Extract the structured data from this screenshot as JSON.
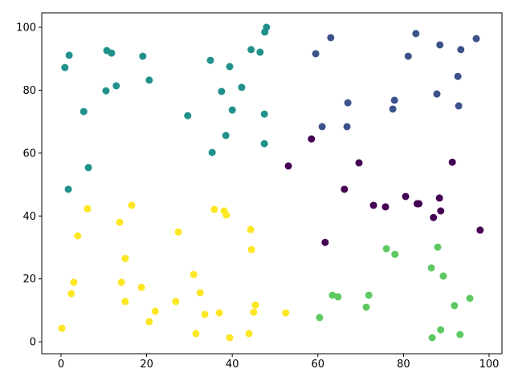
{
  "chart_data": {
    "type": "scatter",
    "xlim": [
      -4.5,
      103
    ],
    "ylim": [
      -3.8,
      104.6
    ],
    "xticks": [
      0,
      20,
      40,
      60,
      80,
      100
    ],
    "yticks": [
      0,
      20,
      40,
      60,
      80,
      100
    ],
    "series": [
      {
        "color": "#440154",
        "x": [
          53.1,
          58.5,
          69.6,
          66.2,
          61.7,
          73.0,
          75.8,
          80.5,
          83.2,
          83.6,
          88.4,
          87.0,
          88.7,
          91.4,
          97.9
        ],
        "values": [
          55.9,
          64.5,
          56.9,
          48.5,
          31.6,
          43.4,
          42.9,
          46.2,
          43.9,
          43.9,
          45.7,
          39.5,
          41.6,
          57.1,
          35.5
        ]
      },
      {
        "color": "#3b528b",
        "x": [
          63.0,
          59.5,
          82.9,
          88.5,
          81.1,
          93.4,
          97.0,
          92.7,
          87.8,
          77.9,
          67.0,
          77.5,
          92.9,
          61.0,
          66.8
        ],
        "values": [
          96.7,
          91.6,
          98.0,
          94.4,
          90.8,
          92.9,
          96.4,
          84.4,
          78.8,
          76.8,
          76.0,
          74.0,
          75.0,
          68.4,
          68.4
        ]
      },
      {
        "color": "#21918c",
        "x": [
          48.0,
          47.6,
          44.4,
          46.5,
          1.9,
          0.9,
          10.7,
          11.8,
          19.1,
          34.9,
          39.4,
          20.6,
          12.9,
          10.5,
          42.2,
          37.5,
          5.3,
          40.0,
          47.5,
          29.6,
          38.5,
          47.5,
          35.3,
          6.4,
          1.7
        ],
        "values": [
          100.0,
          98.5,
          92.9,
          92.1,
          91.1,
          87.2,
          92.6,
          91.8,
          90.8,
          89.5,
          87.5,
          83.2,
          81.4,
          79.8,
          80.9,
          79.6,
          73.2,
          73.7,
          72.4,
          71.9,
          65.6,
          63.0,
          60.2,
          55.4,
          48.5
        ]
      },
      {
        "color": "#5ec962",
        "x": [
          76.0,
          78.0,
          88.0,
          86.5,
          89.3,
          63.4,
          64.7,
          71.9,
          71.3,
          60.4,
          91.9,
          95.5,
          88.7,
          93.2,
          86.7
        ],
        "values": [
          29.6,
          27.8,
          30.1,
          23.5,
          20.9,
          14.8,
          14.3,
          14.8,
          11.0,
          7.7,
          11.5,
          13.8,
          3.8,
          2.3,
          1.3
        ]
      },
      {
        "color": "#fde725",
        "x": [
          16.5,
          6.2,
          13.7,
          3.9,
          15.0,
          35.8,
          38.1,
          38.6,
          27.4,
          44.3,
          44.5,
          31.0,
          3.0,
          14.1,
          18.8,
          2.4,
          32.5,
          15.0,
          26.8,
          45.4,
          22.0,
          33.6,
          37.0,
          45.0,
          52.5,
          20.6,
          0.2,
          31.5,
          43.9,
          39.4
        ],
        "values": [
          43.4,
          42.3,
          38.0,
          33.7,
          26.5,
          42.1,
          41.6,
          40.3,
          34.9,
          35.7,
          29.3,
          21.4,
          18.9,
          18.9,
          17.3,
          15.3,
          15.6,
          12.8,
          12.8,
          11.7,
          9.7,
          8.7,
          9.2,
          9.4,
          9.2,
          6.4,
          4.3,
          2.6,
          2.6,
          1.3
        ]
      }
    ]
  }
}
